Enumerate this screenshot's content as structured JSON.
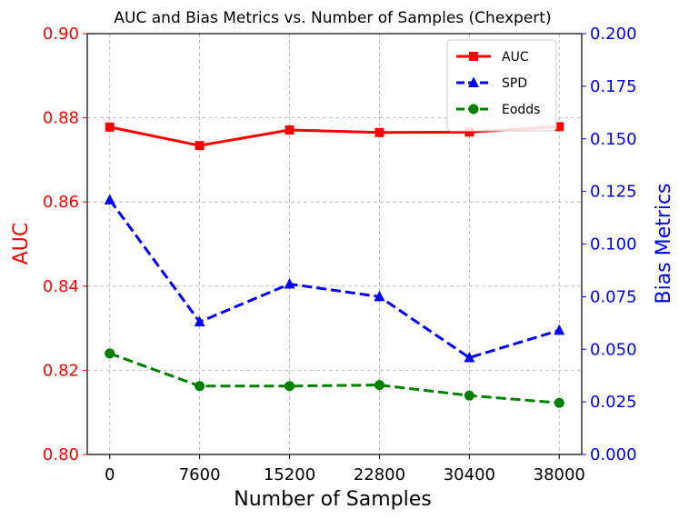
{
  "chart_data": {
    "type": "line",
    "title": "AUC and Bias Metrics vs. Number of Samples (Chexpert)",
    "xlabel": "Number of Samples",
    "ylabel_left": "AUC",
    "ylabel_right": "Bias Metrics",
    "x": [
      0,
      7600,
      15200,
      22800,
      30400,
      38000
    ],
    "x_tick_labels": [
      "0",
      "7600",
      "15200",
      "22800",
      "30400",
      "38000"
    ],
    "ylim_left": [
      0.8,
      0.9
    ],
    "ylim_right": [
      0.0,
      0.2
    ],
    "y_left_ticks": [
      "0.80",
      "0.82",
      "0.84",
      "0.86",
      "0.88",
      "0.90"
    ],
    "y_right_ticks": [
      "0.000",
      "0.025",
      "0.050",
      "0.075",
      "0.100",
      "0.125",
      "0.150",
      "0.175",
      "0.200"
    ],
    "grid": true,
    "legend_position": "top-right",
    "colors": {
      "left_axis": "#ff0000",
      "right_axis": "#0000ff"
    },
    "series": [
      {
        "name": "AUC",
        "axis": "left",
        "color": "#ff0000",
        "marker": "square",
        "line": "solid",
        "values": [
          0.8778,
          0.8734,
          0.8771,
          0.8765,
          0.8766,
          0.8779
        ]
      },
      {
        "name": "SPD",
        "axis": "right",
        "color": "#0000ff",
        "marker": "triangle",
        "line": "dashed",
        "values": [
          0.121,
          0.063,
          0.081,
          0.075,
          0.046,
          0.059
        ]
      },
      {
        "name": "Eodds",
        "axis": "right",
        "color": "#008000",
        "marker": "circle",
        "line": "dashed",
        "values": [
          0.048,
          0.0325,
          0.0325,
          0.033,
          0.028,
          0.0245
        ]
      }
    ]
  }
}
